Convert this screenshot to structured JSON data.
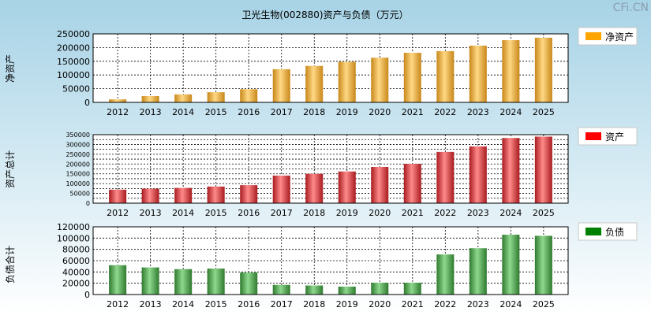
{
  "title": "卫光生物(002880)资产与负债（万元）",
  "watermark": "CFi.CN",
  "colors": {
    "background_top": "#a7d3e6",
    "background_bottom": "#ffffff",
    "plot_bg": "#ffffff"
  },
  "chart_data": [
    {
      "type": "bar",
      "ylabel": "净资产",
      "legend": "净资产",
      "legend_color": "#ffa500",
      "bar_color_dark": "#c8871a",
      "bar_color_light": "#ffd884",
      "categories": [
        "2012",
        "2013",
        "2014",
        "2015",
        "2016",
        "2017",
        "2018",
        "2019",
        "2020",
        "2021",
        "2022",
        "2023",
        "2024",
        "2025"
      ],
      "values": [
        11000,
        23000,
        29000,
        37000,
        48000,
        121000,
        133000,
        148000,
        163000,
        181000,
        187000,
        207000,
        227000,
        236000
      ],
      "ylim": [
        0,
        250000
      ],
      "yticks": [
        "0",
        "50000",
        "100000",
        "150000",
        "200000",
        "250000"
      ],
      "ytick_values": [
        0,
        50000,
        100000,
        150000,
        200000,
        250000
      ],
      "grid": true
    },
    {
      "type": "bar",
      "ylabel": "资产总计",
      "legend": "资产",
      "legend_color": "#ff0000",
      "bar_color_dark": "#a81b1f",
      "bar_color_light": "#ff8a8a",
      "categories": [
        "2012",
        "2013",
        "2014",
        "2015",
        "2016",
        "2017",
        "2018",
        "2019",
        "2020",
        "2021",
        "2022",
        "2023",
        "2024",
        "2025"
      ],
      "values": [
        69000,
        74000,
        78000,
        85000,
        92000,
        141000,
        150000,
        162000,
        185000,
        201000,
        262000,
        290000,
        333000,
        340000
      ],
      "ylim": [
        0,
        350000
      ],
      "yticks": [
        "0",
        "50000",
        "100000",
        "150000",
        "200000",
        "250000",
        "300000",
        "350000"
      ],
      "ytick_values": [
        0,
        50000,
        100000,
        150000,
        200000,
        250000,
        300000,
        350000
      ],
      "minor_step": 25000,
      "grid": true
    },
    {
      "type": "bar",
      "ylabel": "负债合计",
      "legend": "负债",
      "legend_color": "#008000",
      "bar_color_dark": "#2e7a2e",
      "bar_color_light": "#8fd88f",
      "categories": [
        "2012",
        "2013",
        "2014",
        "2015",
        "2016",
        "2017",
        "2018",
        "2019",
        "2020",
        "2021",
        "2022",
        "2023",
        "2024",
        "2025"
      ],
      "values": [
        52000,
        48000,
        45000,
        46000,
        39000,
        17000,
        16000,
        14000,
        21000,
        21000,
        71000,
        82000,
        106000,
        104000
      ],
      "ylim": [
        0,
        120000
      ],
      "yticks": [
        "0",
        "20000",
        "40000",
        "60000",
        "80000",
        "100000",
        "120000"
      ],
      "ytick_values": [
        0,
        20000,
        40000,
        60000,
        80000,
        100000,
        120000
      ],
      "grid": true
    }
  ]
}
